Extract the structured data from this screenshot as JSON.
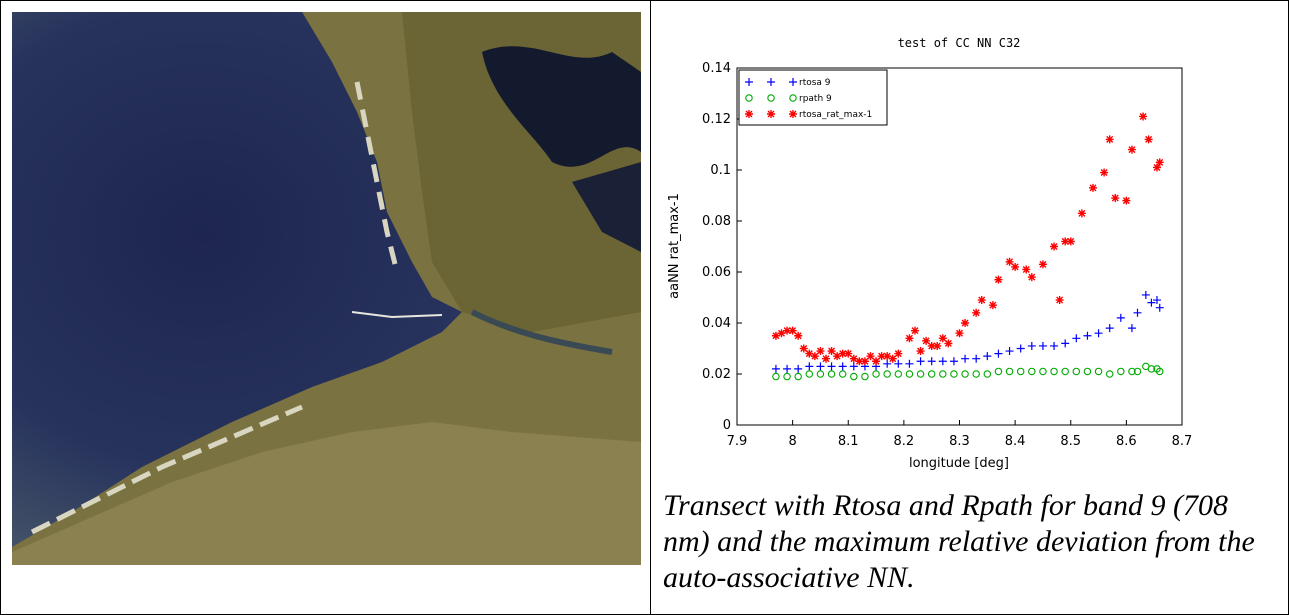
{
  "chart_data": {
    "type": "scatter",
    "title": "test of CC NN C32",
    "xlabel": "longitude [deg]",
    "ylabel": "aaNN rat_max-1",
    "xlim": [
      7.9,
      8.7
    ],
    "xticks": [
      7.9,
      8,
      8.1,
      8.2,
      8.3,
      8.4,
      8.5,
      8.6,
      8.7
    ],
    "ylim": [
      0,
      0.14
    ],
    "yticks": [
      0,
      0.02,
      0.04,
      0.06,
      0.08,
      0.1,
      0.12,
      0.14
    ],
    "legend": "top-left",
    "series": [
      {
        "name": "rtosa 9",
        "color": "#0000ff",
        "marker": "plus",
        "x": [
          7.97,
          7.99,
          8.01,
          8.03,
          8.05,
          8.07,
          8.09,
          8.11,
          8.13,
          8.15,
          8.17,
          8.19,
          8.21,
          8.23,
          8.25,
          8.27,
          8.29,
          8.31,
          8.33,
          8.35,
          8.37,
          8.39,
          8.41,
          8.43,
          8.45,
          8.47,
          8.49,
          8.51,
          8.53,
          8.55,
          8.57,
          8.59,
          8.61,
          8.62,
          8.635,
          8.645,
          8.655,
          8.66
        ],
        "values": [
          0.022,
          0.022,
          0.022,
          0.023,
          0.023,
          0.023,
          0.023,
          0.023,
          0.023,
          0.023,
          0.024,
          0.024,
          0.024,
          0.025,
          0.025,
          0.025,
          0.025,
          0.026,
          0.026,
          0.027,
          0.028,
          0.029,
          0.03,
          0.031,
          0.031,
          0.031,
          0.032,
          0.034,
          0.035,
          0.036,
          0.038,
          0.042,
          0.038,
          0.044,
          0.051,
          0.048,
          0.049,
          0.046
        ]
      },
      {
        "name": "rpath 9",
        "color": "#00aa00",
        "marker": "circle",
        "x": [
          7.97,
          7.99,
          8.01,
          8.03,
          8.05,
          8.07,
          8.09,
          8.11,
          8.13,
          8.15,
          8.17,
          8.19,
          8.21,
          8.23,
          8.25,
          8.27,
          8.29,
          8.31,
          8.33,
          8.35,
          8.37,
          8.39,
          8.41,
          8.43,
          8.45,
          8.47,
          8.49,
          8.51,
          8.53,
          8.55,
          8.57,
          8.59,
          8.61,
          8.62,
          8.635,
          8.645,
          8.655,
          8.66
        ],
        "values": [
          0.019,
          0.019,
          0.019,
          0.02,
          0.02,
          0.02,
          0.02,
          0.019,
          0.019,
          0.02,
          0.02,
          0.02,
          0.02,
          0.02,
          0.02,
          0.02,
          0.02,
          0.02,
          0.02,
          0.02,
          0.021,
          0.021,
          0.021,
          0.021,
          0.021,
          0.021,
          0.021,
          0.021,
          0.021,
          0.021,
          0.02,
          0.021,
          0.021,
          0.021,
          0.023,
          0.022,
          0.022,
          0.021
        ]
      },
      {
        "name": "rtosa_rat_max-1",
        "color": "#ff0000",
        "marker": "star",
        "x": [
          7.97,
          7.98,
          7.99,
          8.0,
          8.01,
          8.02,
          8.03,
          8.04,
          8.05,
          8.06,
          8.07,
          8.08,
          8.09,
          8.1,
          8.11,
          8.12,
          8.13,
          8.14,
          8.15,
          8.16,
          8.17,
          8.18,
          8.19,
          8.21,
          8.22,
          8.23,
          8.24,
          8.25,
          8.26,
          8.27,
          8.28,
          8.3,
          8.31,
          8.33,
          8.34,
          8.36,
          8.37,
          8.39,
          8.4,
          8.42,
          8.43,
          8.45,
          8.47,
          8.48,
          8.49,
          8.5,
          8.52,
          8.54,
          8.56,
          8.57,
          8.58,
          8.6,
          8.61,
          8.63,
          8.64,
          8.655,
          8.66
        ],
        "values": [
          0.035,
          0.036,
          0.037,
          0.037,
          0.035,
          0.03,
          0.028,
          0.027,
          0.029,
          0.026,
          0.029,
          0.027,
          0.028,
          0.028,
          0.026,
          0.025,
          0.025,
          0.027,
          0.025,
          0.027,
          0.027,
          0.026,
          0.028,
          0.034,
          0.037,
          0.029,
          0.033,
          0.031,
          0.031,
          0.034,
          0.032,
          0.036,
          0.04,
          0.044,
          0.049,
          0.047,
          0.057,
          0.064,
          0.062,
          0.061,
          0.058,
          0.063,
          0.07,
          0.049,
          0.072,
          0.072,
          0.083,
          0.093,
          0.099,
          0.112,
          0.089,
          0.088,
          0.108,
          0.121,
          0.112,
          0.101,
          0.103
        ]
      }
    ]
  },
  "caption": "Transect with Rtosa and Rpath for band 9 (708 nm) and the maximum relative deviation from the auto-associative NN."
}
